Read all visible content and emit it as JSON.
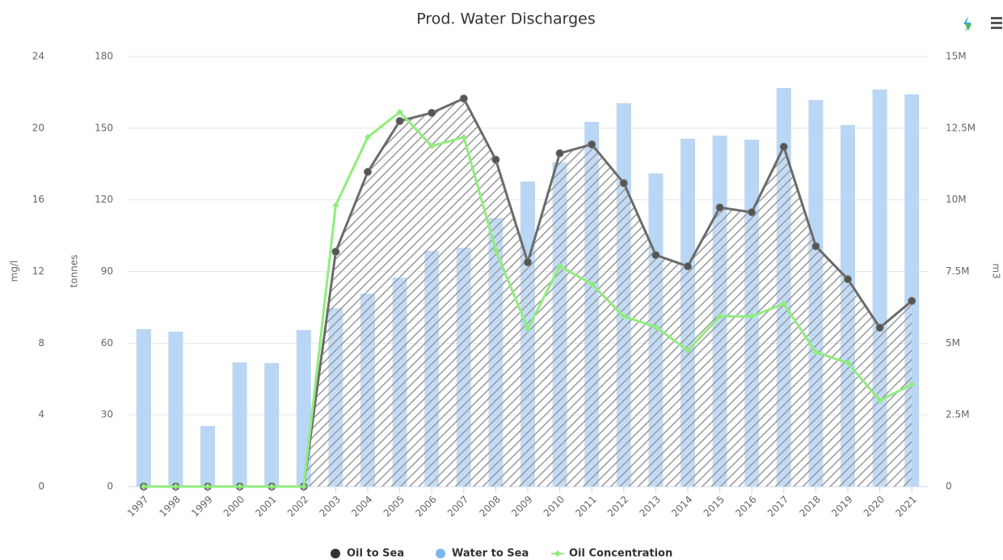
{
  "chart_data": {
    "type": "combo",
    "title": "Prod. Water Discharges",
    "y_label": "tonnes",
    "y2_label": "m3",
    "y3_label": "mg/l",
    "categories": [
      "1997",
      "1998",
      "1999",
      "2000",
      "2001",
      "2002",
      "2003",
      "2004",
      "2005",
      "2006",
      "2007",
      "2008",
      "2009",
      "2010",
      "2011",
      "2012",
      "2013",
      "2014",
      "2015",
      "2016",
      "2017",
      "2018",
      "2019",
      "2020",
      "2021"
    ],
    "ylim": [
      0,
      180
    ],
    "yticks": [
      0,
      30,
      60,
      90,
      120,
      150,
      180
    ],
    "y2lim": [
      0,
      15000000
    ],
    "y2ticks": [
      {
        "value": 0,
        "label": "0"
      },
      {
        "value": 2500000,
        "label": "2.5M"
      },
      {
        "value": 5000000,
        "label": "5M"
      },
      {
        "value": 7500000,
        "label": "7.5M"
      },
      {
        "value": 10000000,
        "label": "10M"
      },
      {
        "value": 12500000,
        "label": "12.5M"
      },
      {
        "value": 15000000,
        "label": "15M"
      }
    ],
    "y3lim": [
      0,
      24
    ],
    "y3ticks": [
      0,
      4,
      8,
      12,
      16,
      20,
      24
    ],
    "grid": true,
    "legend": "bottom",
    "series": [
      {
        "name": "Oil to Sea",
        "type": "area",
        "axis": "y",
        "color": "#6b6b6b",
        "values": [
          0,
          0,
          0,
          0,
          0,
          0,
          98.3,
          131.7,
          153,
          156.4,
          162.4,
          136.8,
          93.9,
          139.5,
          143.2,
          127,
          96.9,
          92.2,
          116.8,
          114.8,
          142.2,
          100.6,
          86.8,
          66.5,
          77.7
        ]
      },
      {
        "name": "Water to Sea",
        "type": "bar",
        "axis": "y2",
        "color": "#b9d6f4",
        "values": [
          5490000,
          5400000,
          2110000,
          4330000,
          4310000,
          5460000,
          6220000,
          6730000,
          7290000,
          8220000,
          8330000,
          9370000,
          10640000,
          11310000,
          12720000,
          13370000,
          10920000,
          12130000,
          12240000,
          12100000,
          13900000,
          13480000,
          12610000,
          13850000,
          13680000
        ]
      },
      {
        "name": "Oil Concentration",
        "type": "line",
        "axis": "y3",
        "color": "#90ed7d",
        "values": [
          0,
          0,
          0,
          0,
          0,
          0,
          15.7,
          19.5,
          20.9,
          19,
          19.5,
          13.2,
          8.8,
          12.3,
          11.3,
          9.5,
          8.9,
          7.6,
          9.5,
          9.5,
          10.2,
          7.5,
          6.9,
          4.8,
          5.7
        ]
      }
    ]
  }
}
